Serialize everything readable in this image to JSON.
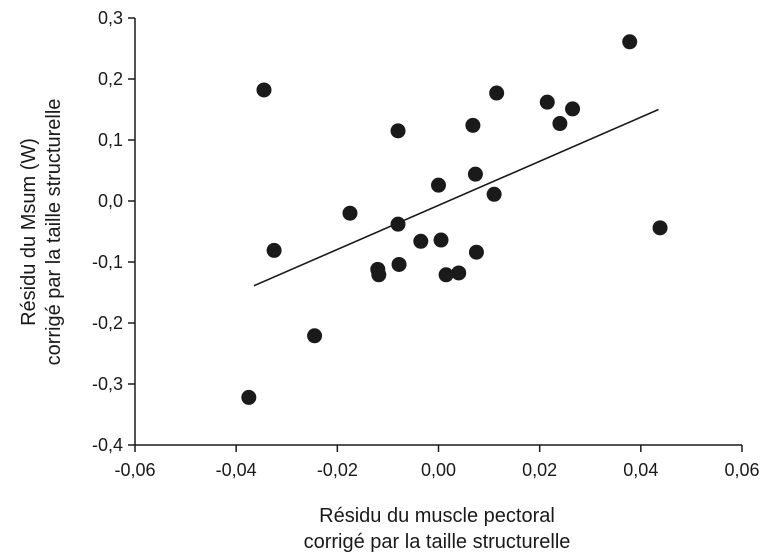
{
  "chart_data": {
    "type": "scatter",
    "title": "",
    "xlabel": [
      "Résidu du muscle pectoral",
      "corrigé par la taille structurelle"
    ],
    "ylabel": [
      "Résidu du Msum (W)",
      "corrigé par la taille structurelle"
    ],
    "xlim": [
      -0.06,
      0.06
    ],
    "ylim": [
      -0.4,
      0.3
    ],
    "x_ticks": [
      -0.06,
      -0.04,
      -0.02,
      0.0,
      0.02,
      0.04,
      0.06
    ],
    "x_tick_labels": [
      "-0,06",
      "-0,04",
      "-0,02",
      "0,00",
      "0,02",
      "0,04",
      "0,06"
    ],
    "y_ticks": [
      0.3,
      0.2,
      0.1,
      0.0,
      -0.1,
      -0.2,
      -0.3,
      -0.4
    ],
    "y_tick_labels": [
      "0,3",
      "0,2",
      "0,1",
      "0,0",
      "-0,1",
      "-0,2",
      "-0,3",
      "-0,4"
    ],
    "grid": false,
    "marker_color": "#1a1a1a",
    "points": [
      {
        "x": -0.0375,
        "y": -0.322
      },
      {
        "x": -0.0345,
        "y": 0.182
      },
      {
        "x": -0.0325,
        "y": -0.081
      },
      {
        "x": -0.0245,
        "y": -0.221
      },
      {
        "x": -0.0175,
        "y": -0.02
      },
      {
        "x": -0.012,
        "y": -0.112
      },
      {
        "x": -0.0118,
        "y": -0.121
      },
      {
        "x": -0.008,
        "y": 0.115
      },
      {
        "x": -0.008,
        "y": -0.038
      },
      {
        "x": -0.0078,
        "y": -0.104
      },
      {
        "x": -0.0035,
        "y": -0.066
      },
      {
        "x": 0.0,
        "y": 0.026
      },
      {
        "x": 0.0005,
        "y": -0.064
      },
      {
        "x": 0.0015,
        "y": -0.121
      },
      {
        "x": 0.004,
        "y": -0.118
      },
      {
        "x": 0.0068,
        "y": 0.124
      },
      {
        "x": 0.0073,
        "y": 0.044
      },
      {
        "x": 0.0075,
        "y": -0.084
      },
      {
        "x": 0.011,
        "y": 0.011
      },
      {
        "x": 0.0115,
        "y": 0.177
      },
      {
        "x": 0.0215,
        "y": 0.162
      },
      {
        "x": 0.024,
        "y": 0.127
      },
      {
        "x": 0.0265,
        "y": 0.151
      },
      {
        "x": 0.0378,
        "y": 0.261
      },
      {
        "x": 0.0438,
        "y": -0.044
      }
    ],
    "trendline": {
      "x": [
        -0.0365,
        0.0435
      ],
      "y": [
        -0.139,
        0.15
      ]
    }
  }
}
